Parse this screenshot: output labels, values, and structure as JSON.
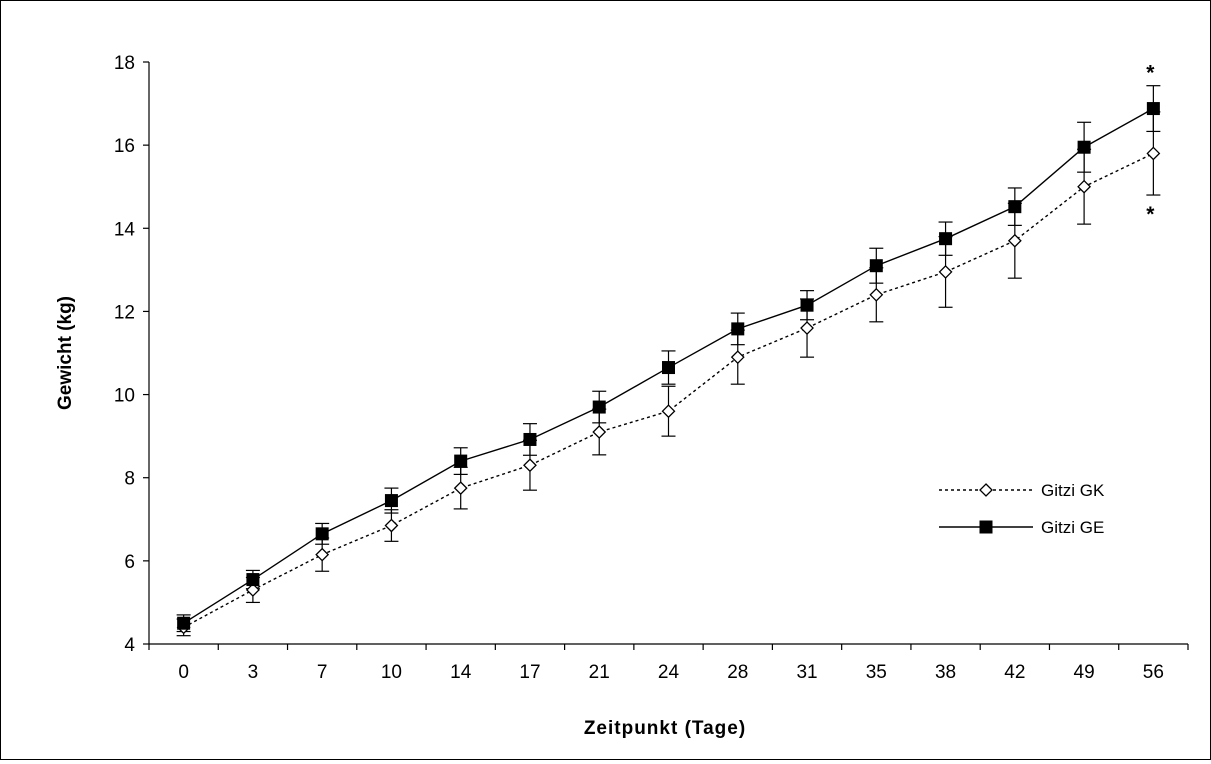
{
  "chart_data": {
    "type": "line",
    "xlabel": "Zeitpunkt (Tage)",
    "ylabel": "Gewicht (kg)",
    "ylim": [
      4,
      18
    ],
    "yticks": [
      4,
      6,
      8,
      10,
      12,
      14,
      16,
      18
    ],
    "categories": [
      "0",
      "3",
      "7",
      "10",
      "14",
      "17",
      "21",
      "24",
      "28",
      "31",
      "35",
      "38",
      "42",
      "49",
      "56"
    ],
    "series": [
      {
        "name": "Gitzi GK",
        "line_style": "dotted",
        "marker": "open-diamond",
        "values": [
          4.4,
          5.3,
          6.15,
          6.85,
          7.75,
          8.3,
          9.1,
          9.6,
          10.9,
          11.6,
          12.4,
          12.95,
          13.7,
          15.0,
          15.8
        ],
        "error": [
          0.2,
          0.3,
          0.4,
          0.38,
          0.5,
          0.6,
          0.55,
          0.6,
          0.65,
          0.7,
          0.65,
          0.85,
          0.9,
          0.9,
          1.0
        ]
      },
      {
        "name": "Gitzi GE",
        "line_style": "solid",
        "marker": "filled-square",
        "values": [
          4.5,
          5.55,
          6.65,
          7.45,
          8.4,
          8.92,
          9.7,
          10.65,
          11.58,
          12.15,
          13.1,
          13.75,
          14.52,
          15.95,
          16.88
        ],
        "error": [
          0.2,
          0.22,
          0.25,
          0.3,
          0.32,
          0.38,
          0.38,
          0.4,
          0.38,
          0.35,
          0.42,
          0.4,
          0.45,
          0.6,
          0.55
        ]
      }
    ],
    "annotations": [
      {
        "text": "*",
        "category": "56",
        "series": "Gitzi GE",
        "placement": "above"
      },
      {
        "text": "*",
        "category": "56",
        "series": "Gitzi GK",
        "placement": "below"
      }
    ],
    "legend": {
      "position": "right-center"
    },
    "grid": false,
    "colors": {
      "line": "#000000",
      "background": "#ffffff"
    }
  }
}
